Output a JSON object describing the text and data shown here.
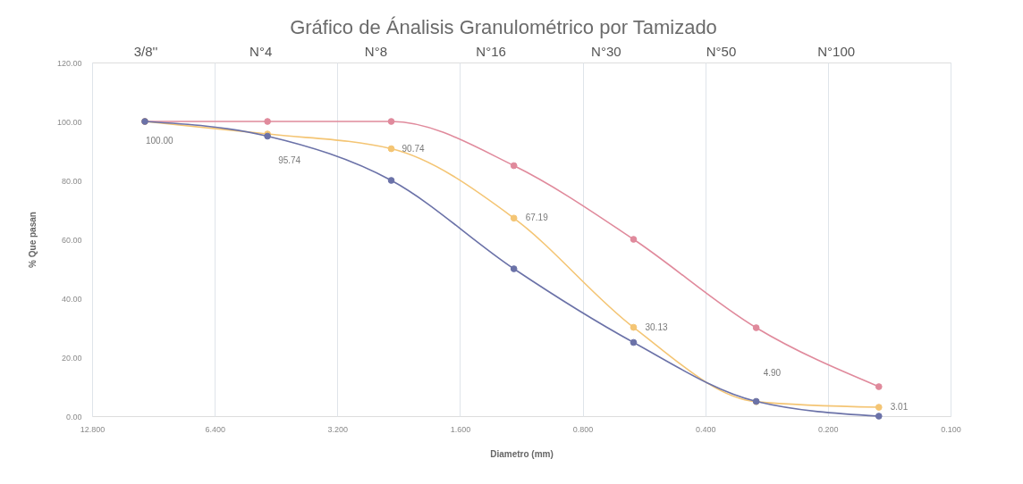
{
  "chart_data": {
    "type": "line",
    "title": "Gráfico de Ánalisis Granulométrico por Tamizado",
    "xlabel": "Diametro (mm)",
    "ylabel": "% Que pasan",
    "annotations": [
      "3/8''",
      "N°4",
      "N°8",
      "N°16",
      "N°30",
      "N°50",
      "N°100"
    ],
    "log": "x",
    "grid": "x",
    "marker": "circle",
    "line_style": "solid",
    "xlim": [
      12.8,
      0.1
    ],
    "xticks": [
      {
        "value": 12.8,
        "label": "12.800"
      },
      {
        "value": 6.4,
        "label": "6.400"
      },
      {
        "value": 3.2,
        "label": "3.200"
      },
      {
        "value": 1.6,
        "label": "1.600"
      },
      {
        "value": 0.8,
        "label": "0.800"
      },
      {
        "value": 0.4,
        "label": "0.400"
      },
      {
        "value": 0.2,
        "label": "0.200"
      },
      {
        "value": 0.1,
        "label": "0.100"
      }
    ],
    "ylim": [
      0,
      120
    ],
    "yticks": [
      {
        "value": 0,
        "label": "0.00"
      },
      {
        "value": 20,
        "label": "20.00"
      },
      {
        "value": 40,
        "label": "40.00"
      },
      {
        "value": 60,
        "label": "60.00"
      },
      {
        "value": 80,
        "label": "80.00"
      },
      {
        "value": 100,
        "label": "100.00"
      },
      {
        "value": 120,
        "label": "120.00"
      }
    ],
    "x": [
      9.5,
      4.75,
      2.36,
      1.18,
      0.6,
      0.3,
      0.15
    ],
    "series": [
      {
        "color": "#e08a9c",
        "values": [
          100,
          100,
          100,
          85,
          60,
          30,
          10
        ]
      },
      {
        "color": "#f4c574",
        "values": [
          100,
          95.74,
          90.74,
          67.19,
          30.13,
          4.9,
          3.01
        ],
        "value_labels": [
          "100.00",
          "95.74",
          "90.74",
          "67.19",
          "30.13",
          "4.90",
          "3.01"
        ]
      },
      {
        "color": "#6b72a8",
        "values": [
          100,
          95,
          80,
          50,
          25,
          5,
          0
        ]
      }
    ]
  }
}
